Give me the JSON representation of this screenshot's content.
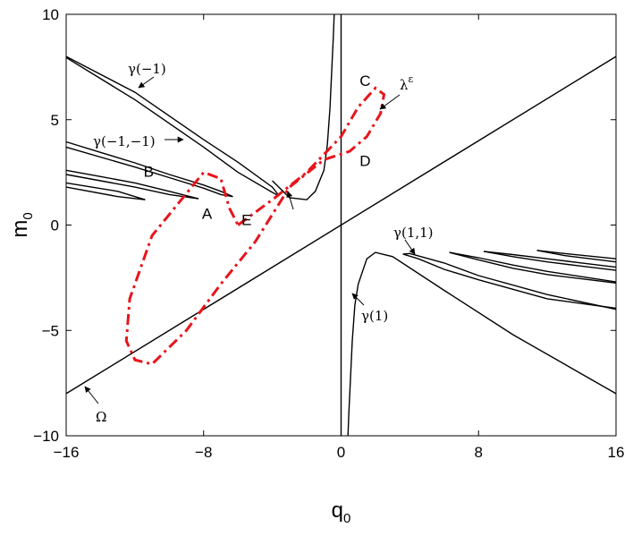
{
  "chart_data": {
    "type": "line",
    "xlabel": "q",
    "xlabel_sub": "0",
    "ylabel": "m",
    "ylabel_sub": "0",
    "xlim": [
      -16,
      16
    ],
    "ylim": [
      -10,
      10
    ],
    "xticks": [
      -16,
      -8,
      0,
      8,
      16
    ],
    "xtick_labels": [
      "−16",
      "−8",
      "0",
      "8",
      "16"
    ],
    "yticks": [
      -10,
      -5,
      0,
      5,
      10
    ],
    "ytick_labels": [
      "−10",
      "−5",
      "0",
      "5",
      "10"
    ],
    "grid": false,
    "legend": "none",
    "colors": {
      "curves": "#000000",
      "lambda": "#e8141b"
    },
    "series": [
      {
        "id": "omega",
        "style": "solid",
        "x": [
          -16,
          16
        ],
        "y": [
          -8,
          8
        ]
      },
      {
        "id": "q-axis-line",
        "style": "solid",
        "x": [
          0,
          0
        ],
        "y": [
          -10,
          10
        ]
      },
      {
        "id": "gamma-minus1-upper",
        "style": "solid",
        "x": [
          -16,
          -12,
          -8,
          -6,
          -4,
          -3.6
        ],
        "y": [
          8,
          6.3,
          4.05,
          2.98,
          1.8,
          1.38
        ]
      },
      {
        "id": "gamma-minus1-lower",
        "style": "solid",
        "x": [
          -3.6,
          -4,
          -6,
          -8,
          -12,
          -16
        ],
        "y": [
          1.38,
          1.55,
          2.5,
          3.7,
          5.95,
          7.95
        ]
      },
      {
        "id": "gamma-minus1-minus1-upper",
        "style": "solid",
        "x": [
          -16,
          -14,
          -12,
          -10,
          -8,
          -7,
          -6.3
        ],
        "y": [
          3.95,
          3.45,
          2.95,
          2.4,
          1.9,
          1.6,
          1.35
        ]
      },
      {
        "id": "gamma-minus1-minus1-lower",
        "style": "solid",
        "x": [
          -6.3,
          -7,
          -8,
          -10,
          -12,
          -16
        ],
        "y": [
          1.35,
          1.45,
          1.75,
          2.25,
          2.75,
          3.7
        ]
      },
      {
        "id": "spur-3-upper",
        "style": "solid",
        "x": [
          -16,
          -14,
          -12,
          -10,
          -8.3
        ],
        "y": [
          2.6,
          2.3,
          2.0,
          1.6,
          1.25
        ]
      },
      {
        "id": "spur-3-lower",
        "style": "solid",
        "x": [
          -8.3,
          -10,
          -12,
          -14,
          -16
        ],
        "y": [
          1.25,
          1.45,
          1.8,
          2.1,
          2.4
        ]
      },
      {
        "id": "spur-4-upper",
        "style": "solid",
        "x": [
          -16,
          -13,
          -11.4
        ],
        "y": [
          2.0,
          1.6,
          1.2
        ]
      },
      {
        "id": "spur-4-lower",
        "style": "solid",
        "x": [
          -11.4,
          -13,
          -16
        ],
        "y": [
          1.2,
          1.35,
          1.8
        ]
      },
      {
        "id": "branch-upper-near-axis",
        "style": "solid",
        "x": [
          -4,
          -3,
          -2,
          -1.5,
          -1,
          -0.8,
          -0.65,
          -0.55,
          -0.45,
          -0.4
        ],
        "y": [
          2.1,
          1.3,
          1.2,
          1.6,
          2.6,
          3.8,
          5.5,
          7.2,
          9.0,
          10
        ]
      },
      {
        "id": "branch-lower-near-axis",
        "style": "solid",
        "x": [
          0.4,
          0.45,
          0.55,
          0.65,
          0.8,
          1.0,
          1.5,
          2.0,
          3.0,
          6.0,
          10.0,
          16.0
        ],
        "y": [
          -10,
          -9.0,
          -7.2,
          -5.5,
          -3.8,
          -2.8,
          -1.6,
          -1.3,
          -1.5,
          -3.1,
          -5.2,
          -8.0
        ]
      },
      {
        "id": "gamma-1-1-upper",
        "style": "solid",
        "x": [
          3.6,
          4,
          6,
          8,
          12,
          16
        ],
        "y": [
          -1.38,
          -1.35,
          -1.8,
          -2.4,
          -3.3,
          -4.0
        ]
      },
      {
        "id": "gamma-1-1-lower",
        "style": "solid",
        "x": [
          3.6,
          4.5,
          6,
          8,
          12,
          16
        ],
        "y": [
          -1.38,
          -1.6,
          -2.1,
          -2.6,
          -3.5,
          -3.95
        ]
      },
      {
        "id": "spur-r3-upper",
        "style": "solid",
        "x": [
          6.3,
          8,
          10,
          12,
          14,
          16
        ],
        "y": [
          -1.3,
          -1.55,
          -1.9,
          -2.2,
          -2.45,
          -2.7
        ]
      },
      {
        "id": "spur-r3-lower",
        "style": "solid",
        "x": [
          6.3,
          8,
          10,
          12,
          14,
          16
        ],
        "y": [
          -1.3,
          -1.65,
          -2.05,
          -2.35,
          -2.55,
          -2.75
        ]
      },
      {
        "id": "spur-r4-upper",
        "style": "solid",
        "x": [
          8.3,
          10,
          12,
          14,
          16
        ],
        "y": [
          -1.25,
          -1.4,
          -1.6,
          -1.8,
          -2.0
        ]
      },
      {
        "id": "spur-r4-lower",
        "style": "solid",
        "x": [
          8.3,
          10,
          12,
          14,
          16
        ],
        "y": [
          -1.25,
          -1.5,
          -1.75,
          -1.95,
          -2.15
        ]
      },
      {
        "id": "spur-r5-upper",
        "style": "solid",
        "x": [
          11.4,
          13,
          16
        ],
        "y": [
          -1.2,
          -1.35,
          -1.6
        ]
      },
      {
        "id": "spur-r5-lower",
        "style": "solid",
        "x": [
          11.4,
          13,
          16
        ],
        "y": [
          -1.2,
          -1.45,
          -1.75
        ]
      },
      {
        "id": "lambda-epsilon",
        "style": "dashdot",
        "x": [
          -6,
          -4,
          -2,
          0,
          1,
          2,
          2.5,
          2.3,
          1.5,
          0.5,
          -1,
          -3,
          -5,
          -7,
          -9,
          -11,
          -12,
          -12.5,
          -12.3,
          -11,
          -9,
          -8,
          -7,
          -6.5,
          -6
        ],
        "y": [
          0,
          1.2,
          2.5,
          4.2,
          5.6,
          6.5,
          6.2,
          5.3,
          4.2,
          3.5,
          3.1,
          1.8,
          -0.8,
          -2.8,
          -5.0,
          -6.6,
          -6.4,
          -5.5,
          -3.5,
          -0.5,
          1.5,
          2.5,
          2.2,
          0.8,
          0
        ]
      }
    ],
    "annotations": [
      {
        "id": "gamma-minus1",
        "text": "γ(−1)"
      },
      {
        "id": "gamma-minus1-minus1",
        "text": "γ(−1,−1)"
      },
      {
        "id": "gamma-1-1",
        "text": "γ(1,1)"
      },
      {
        "id": "gamma-1",
        "text": "γ(1)"
      },
      {
        "id": "lambda-eps",
        "text": "λ",
        "sup": "ε"
      },
      {
        "id": "omega",
        "text": "Ω"
      }
    ],
    "points": [
      {
        "id": "A",
        "text": "A",
        "x": -7.8,
        "y": 0.3
      },
      {
        "id": "B",
        "text": "B",
        "x": -11.2,
        "y": 2.3
      },
      {
        "id": "C",
        "text": "C",
        "x": 1.4,
        "y": 6.6
      },
      {
        "id": "D",
        "text": "D",
        "x": 1.4,
        "y": 2.8
      },
      {
        "id": "E",
        "text": "E",
        "x": -5.5,
        "y": 0.0
      }
    ]
  }
}
